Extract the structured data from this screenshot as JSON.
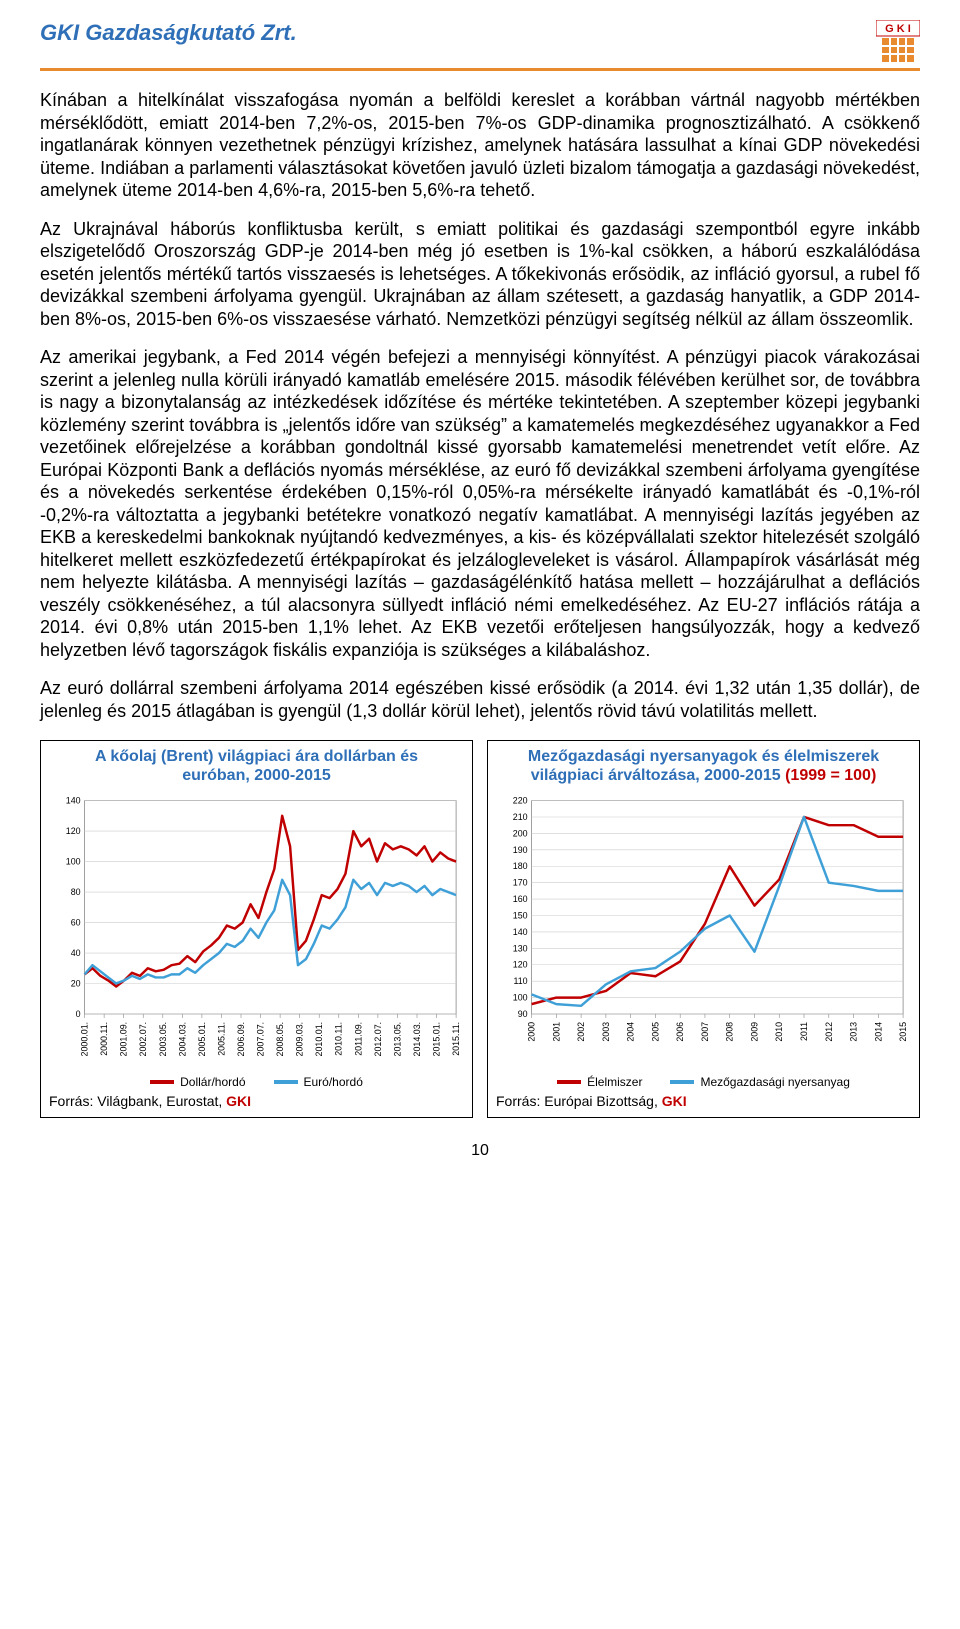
{
  "header": {
    "title": "GKI Gazdaságkutató Zrt."
  },
  "paragraphs": {
    "p1": "Kínában a hitelkínálat visszafogása nyomán a belföldi kereslet a korábban vártnál nagyobb mértékben mérséklődött, emiatt 2014-ben 7,2%-os, 2015-ben 7%-os GDP-dinamika prognosztizálható. A csökkenő ingatlanárak könnyen vezethetnek pénzügyi krízishez, amelynek hatására lassulhat a kínai GDP növekedési üteme. Indiában a parlamenti választásokat követően javuló üzleti bizalom támogatja a gazdasági növekedést, amelynek üteme 2014-ben 4,6%-ra, 2015-ben 5,6%-ra tehető.",
    "p2": "Az Ukrajnával háborús konfliktusba került, s emiatt politikai és gazdasági szempontból egyre inkább elszigetelődő Oroszország GDP-je 2014-ben még jó esetben is 1%-kal csökken, a háború eszkalálódása esetén jelentős mértékű tartós visszaesés is lehetséges. A tőkekivonás erősödik, az infláció gyorsul, a rubel fő devizákkal szembeni árfolyama gyengül. Ukrajnában az állam szétesett, a gazdaság hanyatlik, a GDP 2014-ben 8%-os, 2015-ben 6%-os visszaesése várható. Nemzetközi pénzügyi segítség nélkül az állam összeomlik.",
    "p3": "Az amerikai jegybank, a Fed 2014 végén befejezi a mennyiségi könnyítést. A pénzügyi piacok várakozásai szerint a jelenleg nulla körüli irányadó kamatláb emelésére 2015. második félévében kerülhet sor, de továbbra is nagy a bizonytalanság az intézkedések időzítése és mértéke tekintetében. A szeptember közepi jegybanki közlemény szerint továbbra is „jelentős időre van szükség” a kamatemelés megkezdéséhez ugyanakkor a Fed vezetőinek előrejelzése a korábban gondoltnál kissé gyorsabb kamatemelési menetrendet vetít előre. Az Európai Központi Bank a deflációs nyomás mérséklése, az euró fő devizákkal szembeni árfolyama gyengítése és a növekedés serkentése érdekében 0,15%-ról 0,05%-ra mérsékelte irányadó kamatlábát és -0,1%-ról -0,2%-ra változtatta a jegybanki betétekre vonatkozó negatív kamatlábat. A mennyiségi lazítás jegyében az EKB a kereskedelmi bankoknak nyújtandó kedvezményes, a kis- és középvállalati szektor hitelezését szolgáló hitelkeret mellett eszközfedezetű értékpapírokat és jelzálogleveleket is vásárol. Állampapírok vásárlását még nem helyezte kilátásba. A mennyiségi lazítás – gazdaságélénkítő hatása mellett – hozzájárulhat a deflációs veszély csökkenéséhez, a túl alacsonyra süllyedt infláció némi emelkedéséhez. Az EU-27 inflációs rátája a 2014. évi 0,8% után 2015-ben 1,1% lehet. Az EKB vezetői erőteljesen hangsúlyozzák, hogy a kedvező helyzetben lévő tagországok fiskális expanziója is szükséges a kilábaláshoz.",
    "p4": "Az euró dollárral szembeni árfolyama 2014 egészében kissé erősödik (a 2014. évi 1,32 után 1,35 dollár), de jelenleg és 2015 átlagában is gyengül (1,3 dollár körül lehet), jelentős rövid távú volatilitás mellett."
  },
  "chart_oil": {
    "type": "line",
    "title_line1": "A kőolaj (Brent) világpiaci ára dollárban és",
    "title_line2": "euróban, 2000-2015",
    "ylim": [
      0,
      140
    ],
    "ytick_step": 20,
    "yticks": [
      0,
      20,
      40,
      60,
      80,
      100,
      120,
      140
    ],
    "xlabels": [
      "2000.01.",
      "2000.11.",
      "2001.09.",
      "2002.07.",
      "2003.05.",
      "2004.03.",
      "2005.01.",
      "2005.11.",
      "2006.09.",
      "2007.07.",
      "2008.05.",
      "2009.03.",
      "2010.01.",
      "2010.11.",
      "2011.09.",
      "2012.07.",
      "2013.05.",
      "2014.03.",
      "2015.01.",
      "2015.11."
    ],
    "series": {
      "dollar": {
        "label": "Dollár/hordó",
        "color": "#c00000",
        "width": 2.5,
        "values": [
          26,
          30,
          25,
          22,
          18,
          22,
          27,
          25,
          30,
          28,
          29,
          32,
          33,
          38,
          34,
          41,
          45,
          50,
          58,
          56,
          60,
          72,
          63,
          80,
          95,
          130,
          110,
          42,
          48,
          62,
          78,
          76,
          82,
          92,
          120,
          110,
          115,
          100,
          112,
          108,
          110,
          108,
          104,
          110,
          100,
          106,
          102,
          100
        ]
      },
      "euro": {
        "label": "Euró/hordó",
        "color": "#3fa0d8",
        "width": 2.5,
        "values": [
          26,
          32,
          28,
          24,
          20,
          22,
          25,
          23,
          26,
          24,
          24,
          26,
          26,
          30,
          27,
          32,
          36,
          40,
          46,
          44,
          48,
          56,
          50,
          60,
          68,
          88,
          78,
          32,
          36,
          46,
          58,
          56,
          62,
          70,
          88,
          82,
          86,
          78,
          86,
          84,
          86,
          84,
          80,
          84,
          78,
          82,
          80,
          78
        ]
      }
    },
    "legend": [
      {
        "label": "Dollár/hordó",
        "color": "#c00000"
      },
      {
        "label": "Euró/hordó",
        "color": "#3fa0d8"
      }
    ],
    "source_prefix": "Forrás: Világbank, Eurostat, ",
    "source_gki": "GKI",
    "label_fontsize": 9,
    "background_color": "#ffffff",
    "grid_color": "#cccccc"
  },
  "chart_agri": {
    "type": "line",
    "title_line1": "Mezőgazdasági nyersanyagok és élelmiszerek",
    "title_line2a": "világpiaci árváltozása, 2000-2015 ",
    "title_line2b": "(1999 = 100)",
    "ylim": [
      90,
      220
    ],
    "ytick_step": 10,
    "yticks": [
      90,
      100,
      110,
      120,
      130,
      140,
      150,
      160,
      170,
      180,
      190,
      200,
      210,
      220
    ],
    "xlabels": [
      "2000",
      "2001",
      "2002",
      "2003",
      "2004",
      "2005",
      "2006",
      "2007",
      "2008",
      "2009",
      "2010",
      "2011",
      "2012",
      "2013",
      "2014",
      "2015"
    ],
    "series": {
      "food": {
        "label": "Élelmiszer",
        "color": "#c00000",
        "width": 2.5,
        "values": [
          96,
          100,
          100,
          104,
          115,
          113,
          122,
          145,
          180,
          156,
          172,
          210,
          205,
          205,
          198,
          198
        ]
      },
      "raw": {
        "label": "Mezőgazdasági nyersanyag",
        "color": "#3fa0d8",
        "width": 2.5,
        "values": [
          102,
          96,
          95,
          108,
          116,
          118,
          128,
          142,
          150,
          128,
          168,
          210,
          170,
          168,
          165,
          165
        ]
      }
    },
    "legend": [
      {
        "label": "Élelmiszer",
        "color": "#c00000"
      },
      {
        "label": "Mezőgazdasági nyersanyag",
        "color": "#3fa0d8"
      }
    ],
    "source_prefix": "Forrás: Európai Bizottság, ",
    "source_gki": "GKI",
    "label_fontsize": 9,
    "background_color": "#ffffff",
    "grid_color": "#cccccc"
  },
  "page_number": "10"
}
